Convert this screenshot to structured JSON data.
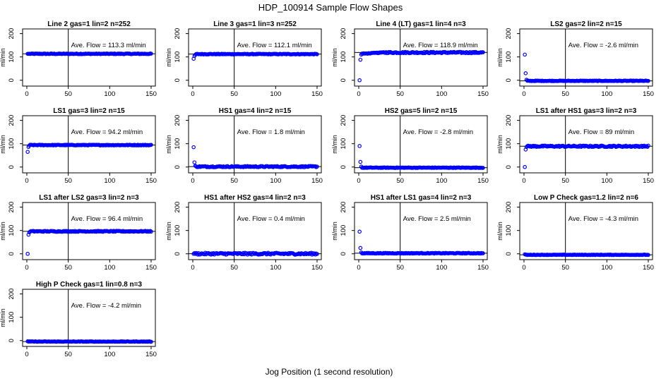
{
  "figure": {
    "title": "HDP_100914  Sample Flow Shapes",
    "xlabel": "Jog Position (1 second resolution)",
    "point_color": "#0000ff"
  },
  "chart_data": [
    {
      "type": "scatter",
      "title": "Line 2 gas=1 lin=2 n=252",
      "ylabel": "ml/min",
      "avg_label": "Ave. Flow =  113.3  ml/min",
      "avg": 113.3,
      "xlim": [
        0,
        150
      ],
      "ylim": [
        -25,
        220
      ],
      "vline": 50,
      "xticks": [
        0,
        50,
        100,
        150
      ],
      "yticks": [
        0,
        100,
        200
      ],
      "start_points": [
        [
          1,
          113.3
        ],
        [
          2,
          113.3
        ]
      ],
      "pattern": "flat",
      "noise": 1.5
    },
    {
      "type": "scatter",
      "title": "Line 3 gas=1 lin=3 n=252",
      "ylabel": "ml/min",
      "avg_label": "Ave. Flow =  112.1  ml/min",
      "avg": 112.1,
      "xlim": [
        0,
        150
      ],
      "ylim": [
        -25,
        220
      ],
      "vline": 50,
      "xticks": [
        0,
        50,
        100,
        150
      ],
      "yticks": [
        0,
        100,
        200
      ],
      "start_points": [
        [
          1,
          92
        ],
        [
          2,
          104
        ],
        [
          3,
          109
        ]
      ],
      "pattern": "flat",
      "noise": 1.5
    },
    {
      "type": "scatter",
      "title": "Line 4 (LT) gas=1 lin=4 n=3",
      "ylabel": "ml/min",
      "avg_label": "Ave. Flow =  118.9  ml/min",
      "avg": 118.9,
      "xlim": [
        0,
        150
      ],
      "ylim": [
        -25,
        220
      ],
      "vline": 50,
      "xticks": [
        0,
        50,
        100,
        150
      ],
      "yticks": [
        0,
        100,
        200
      ],
      "start_points": [
        [
          1,
          0
        ],
        [
          2,
          88
        ],
        [
          3,
          110
        ]
      ],
      "pattern": "rising",
      "noise": 3
    },
    {
      "type": "scatter",
      "title": "LS2 gas=2 lin=2 n=15",
      "ylabel": "ml/min",
      "avg_label": "Ave. Flow =  -2.6  ml/min",
      "avg": -2.6,
      "xlim": [
        0,
        150
      ],
      "ylim": [
        -25,
        220
      ],
      "vline": 50,
      "xticks": [
        0,
        50,
        100,
        150
      ],
      "yticks": [
        0,
        100,
        200
      ],
      "start_points": [
        [
          1,
          110
        ],
        [
          2,
          30
        ],
        [
          3,
          2
        ]
      ],
      "pattern": "flat",
      "noise": 1.2
    },
    {
      "type": "scatter",
      "title": "LS1 gas=3 lin=2 n=15",
      "ylabel": "ml/min",
      "avg_label": "Ave. Flow =  94.2  ml/min",
      "avg": 94.2,
      "xlim": [
        0,
        150
      ],
      "ylim": [
        -25,
        220
      ],
      "vline": 50,
      "xticks": [
        0,
        50,
        100,
        150
      ],
      "yticks": [
        0,
        100,
        200
      ],
      "start_points": [
        [
          1,
          65
        ],
        [
          2,
          86
        ],
        [
          3,
          92
        ]
      ],
      "pattern": "flat",
      "noise": 1.5
    },
    {
      "type": "scatter",
      "title": "HS1 gas=4 lin=2 n=15",
      "ylabel": "ml/min",
      "avg_label": "Ave. Flow =  1.8  ml/min",
      "avg": 1.8,
      "xlim": [
        0,
        150
      ],
      "ylim": [
        -25,
        220
      ],
      "vline": 50,
      "xticks": [
        0,
        50,
        100,
        150
      ],
      "yticks": [
        0,
        100,
        200
      ],
      "start_points": [
        [
          1,
          85
        ],
        [
          2,
          20
        ],
        [
          3,
          5
        ]
      ],
      "pattern": "flat",
      "noise": 2.5
    },
    {
      "type": "scatter",
      "title": "HS2 gas=5 lin=2 n=15",
      "ylabel": "ml/min",
      "avg_label": "Ave. Flow =  -2.8  ml/min",
      "avg": -2.8,
      "xlim": [
        0,
        150
      ],
      "ylim": [
        -25,
        220
      ],
      "vline": 50,
      "xticks": [
        0,
        50,
        100,
        150
      ],
      "yticks": [
        0,
        100,
        200
      ],
      "start_points": [
        [
          1,
          90
        ],
        [
          2,
          22
        ],
        [
          3,
          2
        ]
      ],
      "pattern": "flat",
      "noise": 1.2
    },
    {
      "type": "scatter",
      "title": "LS1 after HS1 gas=3 lin=2 n=3",
      "ylabel": "ml/min",
      "avg_label": "Ave. Flow =  89  ml/min",
      "avg": 89,
      "xlim": [
        0,
        150
      ],
      "ylim": [
        -25,
        220
      ],
      "vline": 50,
      "xticks": [
        0,
        50,
        100,
        150
      ],
      "yticks": [
        0,
        100,
        200
      ],
      "start_points": [
        [
          1,
          0
        ],
        [
          2,
          75
        ],
        [
          3,
          86
        ]
      ],
      "pattern": "flat",
      "noise": 3
    },
    {
      "type": "scatter",
      "title": "LS1 after LS2 gas=3 lin=2 n=3",
      "ylabel": "ml/min",
      "avg_label": "Ave. Flow =  96.4  ml/min",
      "avg": 96.4,
      "xlim": [
        0,
        150
      ],
      "ylim": [
        -25,
        220
      ],
      "vline": 50,
      "xticks": [
        0,
        50,
        100,
        150
      ],
      "yticks": [
        0,
        100,
        200
      ],
      "start_points": [
        [
          1,
          0
        ],
        [
          2,
          82
        ],
        [
          3,
          92
        ]
      ],
      "pattern": "flat",
      "noise": 2
    },
    {
      "type": "scatter",
      "title": "HS1 after HS2 gas=4 lin=2 n=3",
      "ylabel": "ml/min",
      "avg_label": "Ave. Flow =  0.4  ml/min",
      "avg": 0.4,
      "xlim": [
        0,
        150
      ],
      "ylim": [
        -25,
        220
      ],
      "vline": 50,
      "xticks": [
        0,
        50,
        100,
        150
      ],
      "yticks": [
        0,
        100,
        200
      ],
      "start_points": [
        [
          1,
          0
        ],
        [
          2,
          3
        ]
      ],
      "pattern": "flat",
      "noise": 4
    },
    {
      "type": "scatter",
      "title": "HS1 after LS1 gas=4 lin=2 n=3",
      "ylabel": "ml/min",
      "avg_label": "Ave. Flow =  2.5  ml/min",
      "avg": 2.5,
      "xlim": [
        0,
        150
      ],
      "ylim": [
        -25,
        220
      ],
      "vline": 50,
      "xticks": [
        0,
        50,
        100,
        150
      ],
      "yticks": [
        0,
        100,
        200
      ],
      "start_points": [
        [
          1,
          95
        ],
        [
          2,
          25
        ],
        [
          3,
          6
        ]
      ],
      "pattern": "flat",
      "noise": 1.5
    },
    {
      "type": "scatter",
      "title": "Low P Check gas=1.2 lin=2 n=6",
      "ylabel": "ml/min",
      "avg_label": "Ave. Flow =  -4.3  ml/min",
      "avg": -4.3,
      "xlim": [
        0,
        150
      ],
      "ylim": [
        -25,
        220
      ],
      "vline": 50,
      "xticks": [
        0,
        50,
        100,
        150
      ],
      "yticks": [
        0,
        100,
        200
      ],
      "start_points": [
        [
          1,
          -2
        ]
      ],
      "pattern": "flat",
      "noise": 1
    },
    {
      "type": "scatter",
      "title": "High P Check gas=1 lin=0.8 n=3",
      "ylabel": "ml/min",
      "avg_label": "Ave. Flow =  -4.2  ml/min",
      "avg": -4.2,
      "xlim": [
        0,
        150
      ],
      "ylim": [
        -25,
        220
      ],
      "vline": 50,
      "xticks": [
        0,
        50,
        100,
        150
      ],
      "yticks": [
        0,
        100,
        200
      ],
      "start_points": [
        [
          1,
          -3
        ]
      ],
      "pattern": "flat",
      "noise": 1
    }
  ]
}
